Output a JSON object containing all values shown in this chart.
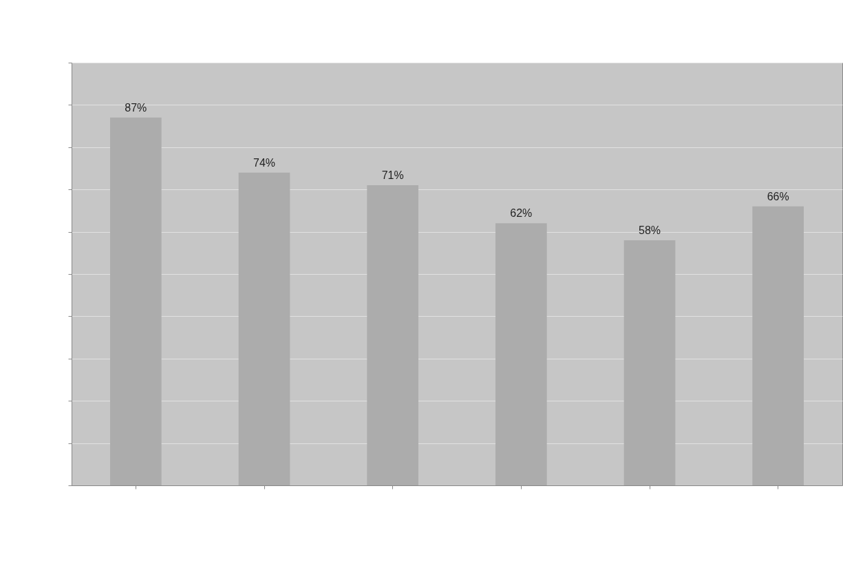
{
  "chart_data": {
    "type": "bar",
    "categories": [
      null,
      null,
      null,
      null,
      null,
      null
    ],
    "values": [
      87,
      74,
      71,
      62,
      58,
      66
    ],
    "value_labels": [
      "87%",
      "74%",
      "71%",
      "62%",
      "58%",
      "66%"
    ],
    "color": "#acacac",
    "ylim": [
      0,
      100
    ],
    "yticks": [
      {
        "value": 0,
        "label": null
      },
      {
        "value": 10,
        "label": null
      },
      {
        "value": 20,
        "label": null
      },
      {
        "value": 30,
        "label": null
      },
      {
        "value": 40,
        "label": null
      },
      {
        "value": 50,
        "label": null
      },
      {
        "value": 60,
        "label": null
      },
      {
        "value": 70,
        "label": null
      },
      {
        "value": 80,
        "label": null
      },
      {
        "value": 90,
        "label": null
      },
      {
        "value": 100,
        "label": null
      }
    ],
    "grid": "y"
  }
}
